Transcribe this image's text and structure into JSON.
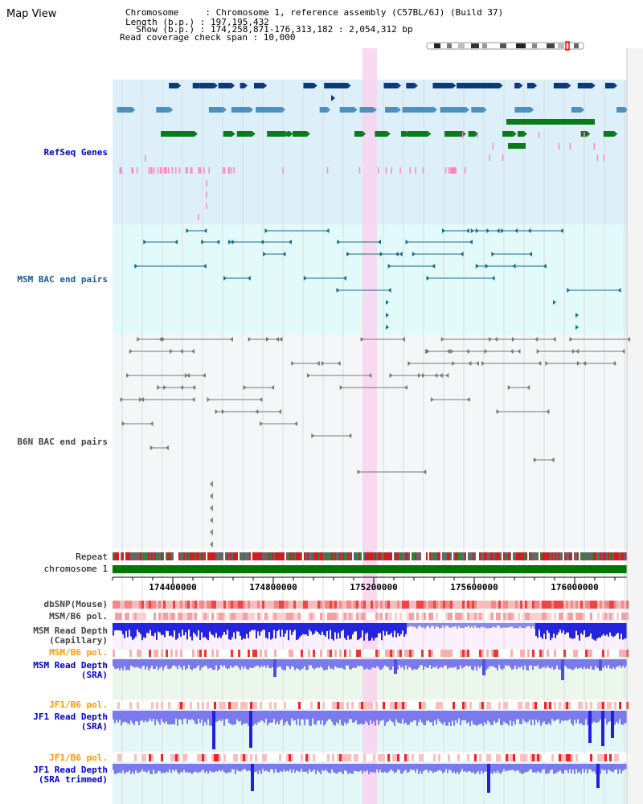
{
  "page": {
    "title": "Map View"
  },
  "header": {
    "chromosome_line": "Chromosome     : Chromosome 1, reference assembly (C57BL/6J) (Build 37)",
    "length_line": "Length (b.p.) : 197,195,432",
    "show_line": "  Show (b.p.) : 174,258,871-176,313,182 : 2,054,312 bp",
    "span_line": "Read coverage check span : 10,000"
  },
  "tracks": {
    "refseq": "RefSeq Genes",
    "msm_bac": "MSM BAC end pairs",
    "b6n_bac": "B6N BAC end pairs",
    "repeat": "Repeat",
    "chromosome": "chromosome 1",
    "dbsnp": "dbSNP(Mouse)",
    "msm_pol_1": "MSM/B6 pol.",
    "msm_depth_cap_1": "MSM Read Depth",
    "msm_depth_cap_2": "(Capillary)",
    "msm_pol_2": "MSM/B6 pol.",
    "msm_depth_sra_1": "MSM Read Depth",
    "msm_depth_sra_2": "(SRA)",
    "jf1_pol_1": "JF1/B6 pol.",
    "jf1_depth_sra_1": "JF1 Read Depth",
    "jf1_depth_sra_2": "(SRA)",
    "jf1_pol_2": "JF1/B6 pol.",
    "jf1_depth_trim_1": "JF1 Read Depth",
    "jf1_depth_trim_2": "(SRA trimmed)"
  },
  "axis": {
    "ticks": [
      "174400000",
      "174800000",
      "175200000",
      "175600000",
      "176000000"
    ]
  },
  "colors": {
    "refseq_bg": "#ddf0fa",
    "msm_bg": "#e2fafa",
    "b6n_bg": "#f4f6f8",
    "highlight": "#f9d4ef",
    "gene_dark": "#0a3a7a",
    "gene_mid": "#4a90c0",
    "gene_green": "#0a7a1a",
    "pink": "#ff88bb",
    "msm_line": "#1a6a8a",
    "b6n_line": "#777777",
    "chrom_bar": "#007700",
    "depth_blue": "#2020dd",
    "depth_light": "#7a7aee"
  }
}
